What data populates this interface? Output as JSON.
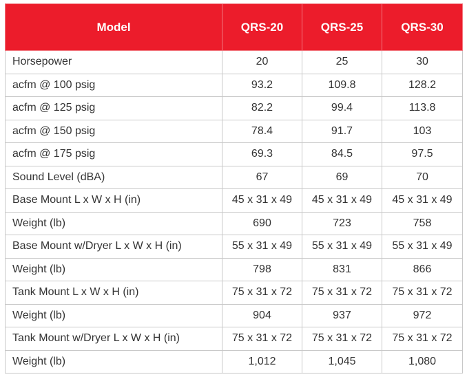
{
  "table": {
    "header": [
      "Model",
      "QRS-20",
      "QRS-25",
      "QRS-30"
    ],
    "rows": [
      [
        "Horsepower",
        "20",
        "25",
        "30"
      ],
      [
        "acfm @ 100 psig",
        "93.2",
        "109.8",
        "128.2"
      ],
      [
        "acfm @ 125 psig",
        "82.2",
        "99.4",
        "113.8"
      ],
      [
        "acfm @ 150 psig",
        "78.4",
        "91.7",
        "103"
      ],
      [
        "acfm @ 175 psig",
        "69.3",
        "84.5",
        "97.5"
      ],
      [
        "Sound Level (dBA)",
        "67",
        "69",
        "70"
      ],
      [
        "Base Mount L x W x H (in)",
        "45 x 31 x 49",
        "45 x 31 x 49",
        "45 x 31 x 49"
      ],
      [
        "Weight (lb)",
        "690",
        "723",
        "758"
      ],
      [
        "Base Mount w/Dryer L x W x H (in)",
        "55 x 31 x 49",
        "55 x 31 x 49",
        "55 x 31 x 49"
      ],
      [
        "Weight (lb)",
        "798",
        "831",
        "866"
      ],
      [
        "Tank Mount L x W x H (in)",
        "75 x 31 x 72",
        "75 x 31 x 72",
        "75 x 31 x 72"
      ],
      [
        "Weight (lb)",
        "904",
        "937",
        "972"
      ],
      [
        "Tank Mount w/Dryer L x W x H (in)",
        "75 x 31 x 72",
        "75 x 31 x 72",
        "75 x 31 x 72"
      ],
      [
        "Weight (lb)",
        "1,012",
        "1,045",
        "1,080"
      ]
    ]
  }
}
